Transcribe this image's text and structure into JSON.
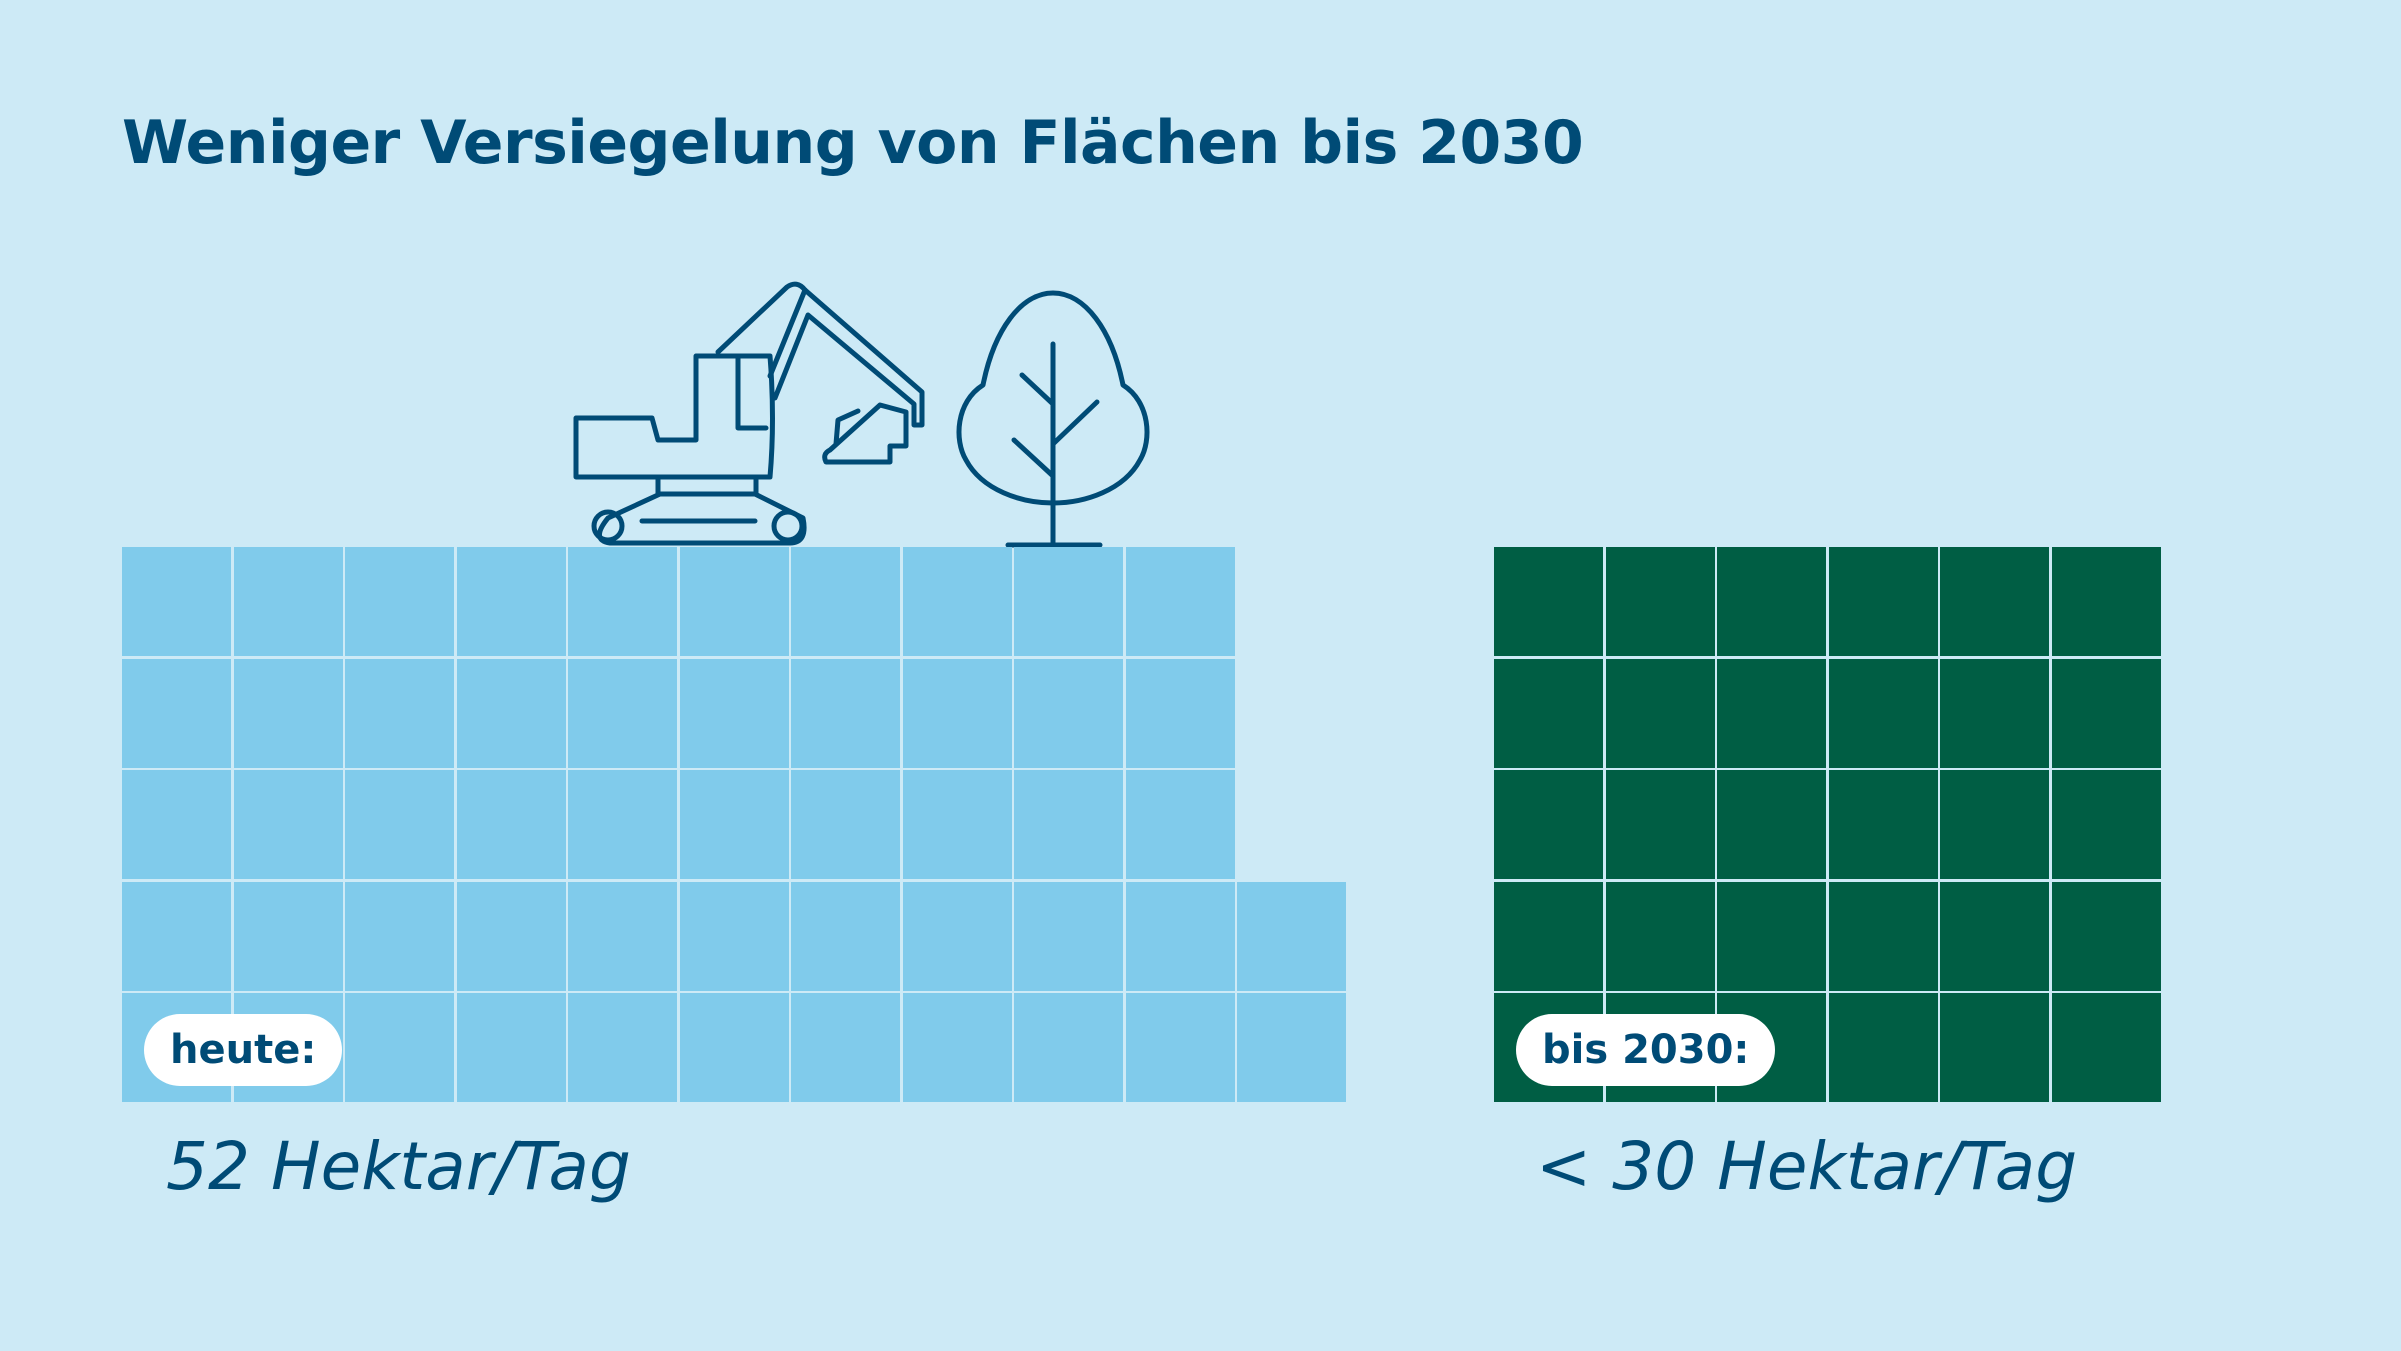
{
  "title": "Weniger Versiegelung von Flächen bis 2030",
  "colors": {
    "background": "#cdeaf6",
    "today": "#80cbeb",
    "target": "#005e44",
    "text": "#004b76"
  },
  "icons": [
    "excavator-icon",
    "tree-icon"
  ],
  "chart_data": [
    {
      "type": "bar",
      "label": "heute:",
      "value_text": "52 Hektar/Tag",
      "value": 52,
      "unit": "Hektar/Tag",
      "color": "#80cbeb"
    },
    {
      "type": "bar",
      "label": "bis 2030:",
      "value_text": "< 30 Hektar/Tag",
      "value": 30,
      "unit": "Hektar/Tag",
      "color": "#005e44"
    }
  ]
}
